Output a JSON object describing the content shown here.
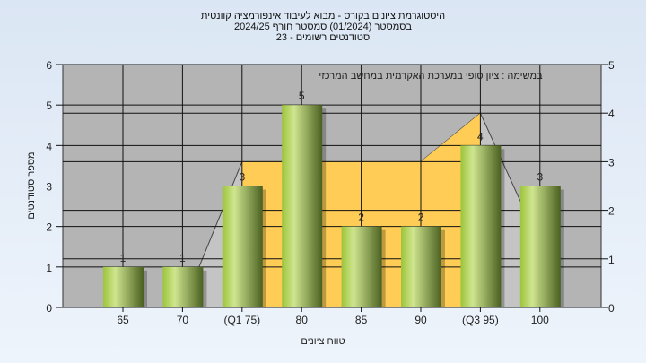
{
  "title_lines": [
    "היסטוגרמת ציונים בקורס - מבוא לעיבוד אינפורמציה קוונטית",
    "בסמסטר  (01/2024)  סמסטר חורף 2024/25",
    "סטודנטים רשומים - 23"
  ],
  "chart_data": {
    "type": "bar",
    "subtitle": "במשימה : ציון סופי במערכת האקדמית במחשב המרכזי",
    "categories": [
      "65",
      "70",
      "(Q1 75)",
      "80",
      "85",
      "90",
      "(Q3 95)",
      "100"
    ],
    "values": [
      1,
      1,
      3,
      5,
      2,
      2,
      4,
      3
    ],
    "xlabel": "טווח ציונים",
    "ylabel": "מספר סטודנטים",
    "ylim": [
      0,
      6
    ],
    "y2lim": [
      0,
      5
    ],
    "yticks": [
      0,
      1,
      2,
      3,
      4,
      5,
      6
    ],
    "y2ticks": [
      0,
      1,
      2,
      3,
      4,
      5
    ],
    "grid": true,
    "background_curve": [
      0,
      0,
      3,
      3,
      3,
      3,
      4,
      1.3
    ],
    "iqr_highlight": [
      "(Q1 75)",
      "(Q3 95)"
    ],
    "colors": {
      "bar_light": "#c8e08a",
      "bar_dark": "#4d6320",
      "plot_bg": "#b4b4b4",
      "iqr_fill": "#ffcc55",
      "curve_fill": "#c4c4c4"
    }
  }
}
